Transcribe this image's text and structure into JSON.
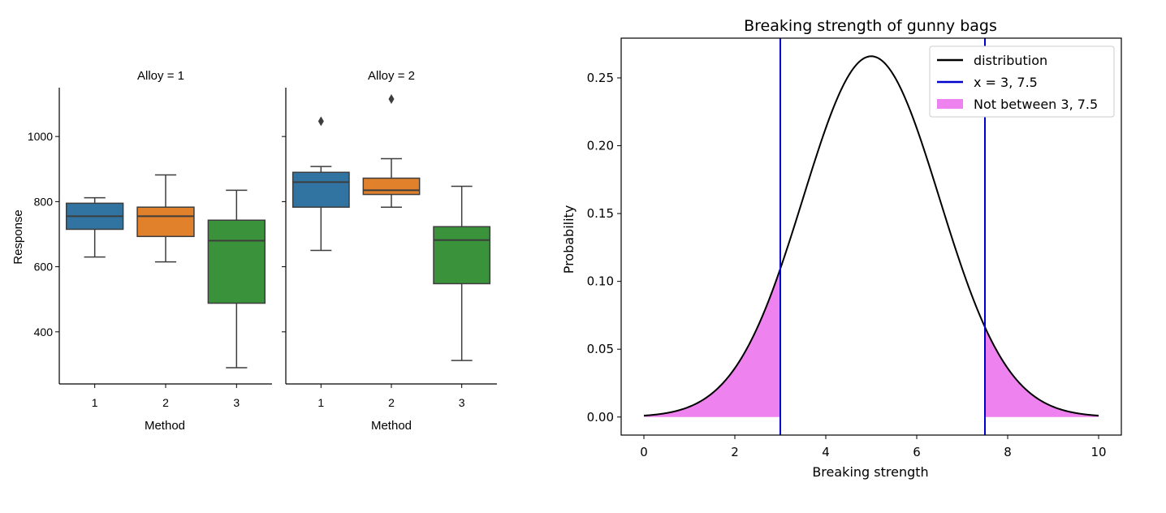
{
  "chart_data": [
    {
      "type": "boxplot",
      "facet_label": "Alloy = 1",
      "xlabel": "Method",
      "ylabel": "Response",
      "categories": [
        "1",
        "2",
        "3"
      ],
      "ylim": [
        240,
        1150
      ],
      "yticks": [
        400,
        600,
        800,
        1000
      ],
      "boxes": [
        {
          "category": "1",
          "whisker_low": 630,
          "q1": 715,
          "median": 755,
          "q3": 795,
          "whisker_high": 812,
          "outliers": [],
          "color": "#3274a1"
        },
        {
          "category": "2",
          "whisker_low": 615,
          "q1": 693,
          "median": 755,
          "q3": 783,
          "whisker_high": 882,
          "outliers": [],
          "color": "#e1812c"
        },
        {
          "category": "3",
          "whisker_low": 290,
          "q1": 488,
          "median": 680,
          "q3": 743,
          "whisker_high": 835,
          "outliers": [],
          "color": "#3a923a"
        }
      ]
    },
    {
      "type": "boxplot",
      "facet_label": "Alloy = 2",
      "xlabel": "Method",
      "ylabel": "",
      "categories": [
        "1",
        "2",
        "3"
      ],
      "ylim": [
        240,
        1150
      ],
      "yticks": [
        400,
        600,
        800,
        1000
      ],
      "boxes": [
        {
          "category": "1",
          "whisker_low": 650,
          "q1": 783,
          "median": 860,
          "q3": 890,
          "whisker_high": 908,
          "outliers": [
            1047
          ],
          "color": "#3274a1"
        },
        {
          "category": "2",
          "whisker_low": 783,
          "q1": 822,
          "median": 835,
          "q3": 872,
          "whisker_high": 932,
          "outliers": [
            1115
          ],
          "color": "#e1812c"
        },
        {
          "category": "3",
          "whisker_low": 312,
          "q1": 548,
          "median": 682,
          "q3": 723,
          "whisker_high": 847,
          "outliers": [],
          "color": "#3a923a"
        }
      ]
    },
    {
      "type": "line",
      "title": "Breaking strength of gunny bags",
      "xlabel": "Breaking strength",
      "ylabel": "Probability",
      "xlim": [
        -0.5,
        10.5
      ],
      "ylim": [
        -0.0133,
        0.2793
      ],
      "xticks": [
        0,
        2,
        4,
        6,
        8,
        10
      ],
      "yticks": [
        "0.00",
        "0.05",
        "0.10",
        "0.15",
        "0.20",
        "0.25"
      ],
      "distribution": {
        "name": "distribution",
        "type": "normal",
        "mean": 5,
        "sd": 1.5,
        "x_range": [
          0,
          10
        ],
        "color": "#000000"
      },
      "vlines": {
        "name": "x = 3, 7.5",
        "x": [
          3,
          7.5
        ],
        "color": "#0000cc"
      },
      "shaded": {
        "name": "Not between 3, 7.5",
        "ranges": [
          [
            0,
            3
          ],
          [
            7.5,
            10
          ]
        ],
        "color": "#ee82ee"
      },
      "legend_position": "top-right",
      "grid": false
    }
  ]
}
